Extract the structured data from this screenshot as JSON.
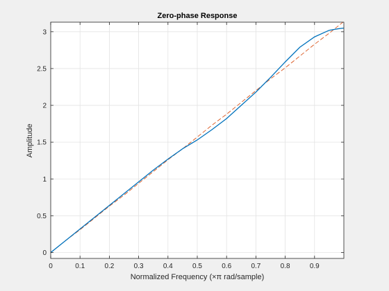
{
  "chart_data": {
    "type": "line",
    "title": "Zero-phase Response",
    "xlabel": "Normalized Frequency (×π rad/sample)",
    "ylabel": "Amplitude",
    "xlim": [
      0,
      1
    ],
    "ylim": [
      -0.08,
      3.13
    ],
    "xticks": [
      0,
      0.1,
      0.2,
      0.3,
      0.4,
      0.5,
      0.6,
      0.7,
      0.8,
      0.9
    ],
    "xtick_labels": [
      "0",
      "0.1",
      "0.2",
      "0.3",
      "0.4",
      "0.5",
      "0.6",
      "0.7",
      "0.8",
      "0.9"
    ],
    "yticks": [
      0,
      0.5,
      1,
      1.5,
      2,
      2.5,
      3
    ],
    "ytick_labels": [
      "0",
      "0.5",
      "1",
      "1.5",
      "2",
      "2.5",
      "3"
    ],
    "grid": true,
    "series": [
      {
        "color": "#0072bd",
        "style": "solid",
        "x": [
          0,
          0.05,
          0.1,
          0.15,
          0.2,
          0.25,
          0.3,
          0.35,
          0.4,
          0.45,
          0.5,
          0.55,
          0.6,
          0.65,
          0.7,
          0.75,
          0.8,
          0.85,
          0.9,
          0.95,
          0.98,
          1.0
        ],
        "y": [
          0,
          0.16,
          0.32,
          0.48,
          0.64,
          0.8,
          0.96,
          1.12,
          1.27,
          1.41,
          1.53,
          1.67,
          1.82,
          2.0,
          2.18,
          2.38,
          2.59,
          2.79,
          2.93,
          3.02,
          3.04,
          3.05
        ]
      },
      {
        "color": "#d95319",
        "style": "dashed",
        "x": [
          0,
          0.05,
          0.1,
          0.15,
          0.2,
          0.25,
          0.3,
          0.35,
          0.4,
          0.45,
          0.5,
          0.55,
          0.6,
          0.65,
          0.7,
          0.75,
          0.8,
          0.85,
          0.9,
          0.95,
          1.0
        ],
        "y": [
          0,
          0.16,
          0.31,
          0.47,
          0.63,
          0.78,
          0.94,
          1.1,
          1.26,
          1.41,
          1.57,
          1.73,
          1.88,
          2.04,
          2.2,
          2.36,
          2.51,
          2.67,
          2.83,
          2.98,
          3.14
        ]
      }
    ]
  }
}
